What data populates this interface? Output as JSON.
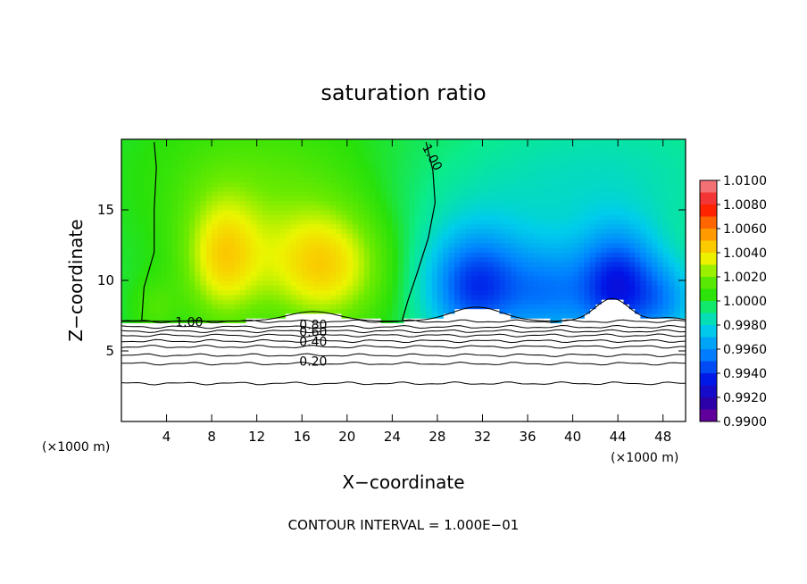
{
  "chart_data": {
    "type": "heatmap",
    "title": "saturation ratio",
    "xlabel": "X−coordinate",
    "ylabel": "Z−coordinate",
    "x_unit_left": "(×1000 m)",
    "x_unit_right": "(×1000 m)",
    "xlim": [
      0,
      50
    ],
    "ylim": [
      0,
      20
    ],
    "x_ticks": [
      4,
      8,
      12,
      16,
      20,
      24,
      28,
      32,
      36,
      40,
      44,
      48
    ],
    "y_ticks": [
      5,
      10,
      15
    ],
    "colorbar": {
      "labels": [
        "1.0100",
        "1.0080",
        "1.0060",
        "1.0040",
        "1.0020",
        "1.0000",
        "0.9980",
        "0.9960",
        "0.9940",
        "0.9920",
        "0.9900"
      ],
      "min": 0.99,
      "max": 1.01
    },
    "contour_labels": [
      {
        "text": "1.00",
        "x": 27.5,
        "y": 18.7,
        "rotate": 62
      },
      {
        "text": "1.00",
        "x": 6.0,
        "y": 7.0,
        "rotate": 0
      },
      {
        "text": "0.80",
        "x": 17.0,
        "y": 6.8,
        "rotate": 0
      },
      {
        "text": "0.60",
        "x": 17.0,
        "y": 6.3,
        "rotate": 0
      },
      {
        "text": "0.40",
        "x": 17.0,
        "y": 5.6,
        "rotate": 0
      },
      {
        "text": "0.20",
        "x": 17.0,
        "y": 4.2,
        "rotate": 0
      }
    ],
    "contour_levels_below": [
      7.1,
      6.7,
      6.4,
      6.1,
      5.7,
      5.3,
      4.7,
      4.1,
      2.7
    ],
    "contour_interval_note": "CONTOUR INTERVAL = 1.000E−01",
    "grid": false,
    "legend": "right colorbar"
  }
}
